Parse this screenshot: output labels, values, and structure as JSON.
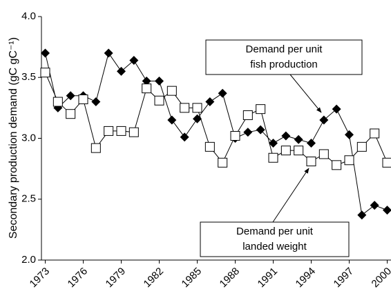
{
  "chart_data": {
    "type": "line",
    "y_label": "Secondary production demand (gC gC⁻¹)",
    "x": [
      1973,
      1974,
      1975,
      1976,
      1977,
      1978,
      1979,
      1980,
      1981,
      1982,
      1983,
      1984,
      1985,
      1986,
      1987,
      1988,
      1989,
      1990,
      1991,
      1992,
      1993,
      1994,
      1995,
      1996,
      1997,
      1998,
      1999,
      2000
    ],
    "series": [
      {
        "name": "Demand per unit fish production",
        "color": "#000000",
        "marker": "diamond",
        "values": [
          3.7,
          3.25,
          3.35,
          3.35,
          3.3,
          3.7,
          3.55,
          3.64,
          3.47,
          3.47,
          3.15,
          3.01,
          3.16,
          3.3,
          3.37,
          3.0,
          3.05,
          3.07,
          2.96,
          3.02,
          2.99,
          2.96,
          3.15,
          3.24,
          3.03,
          2.37,
          2.45,
          2.41
        ]
      },
      {
        "name": "Demand per unit landed weight",
        "color": "#000000",
        "marker": "square",
        "values": [
          3.54,
          3.3,
          3.2,
          3.32,
          2.92,
          3.06,
          3.06,
          3.05,
          3.41,
          3.31,
          3.39,
          3.25,
          3.25,
          2.93,
          2.8,
          3.02,
          3.19,
          3.24,
          2.84,
          2.9,
          2.9,
          2.81,
          2.87,
          2.78,
          2.82,
          2.93,
          3.04,
          2.8
        ]
      }
    ],
    "xlim": [
      1972.7,
      2000.3
    ],
    "xticks": [
      1973,
      1976,
      1979,
      1982,
      1985,
      1988,
      1991,
      1994,
      1997,
      2000
    ],
    "ylim": [
      2.0,
      4.0
    ],
    "yticks": [
      {
        "value": 2.0,
        "label": "2.0"
      },
      {
        "value": 2.5,
        "label": "2.5"
      },
      {
        "value": 3.0,
        "label": "3.0"
      },
      {
        "value": 3.5,
        "label": "3.5"
      },
      {
        "value": 4.0,
        "label": "4.0"
      }
    ],
    "grid": false,
    "annotations": [
      {
        "lines": [
          "Demand per unit",
          "fish production"
        ]
      },
      {
        "lines": [
          "Demand per unit",
          "landed weight"
        ]
      }
    ]
  }
}
